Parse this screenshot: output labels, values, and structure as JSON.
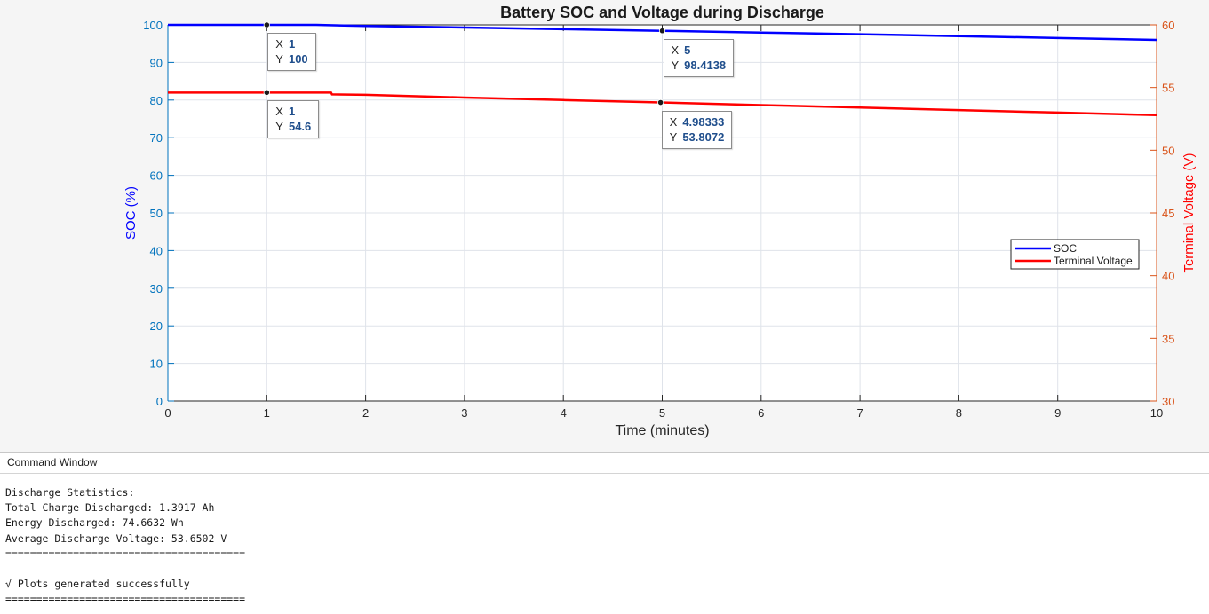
{
  "figure": {
    "title": "Battery SOC and Voltage during Discharge"
  },
  "chart_data": {
    "type": "line",
    "title": "Battery SOC and Voltage during Discharge",
    "xlabel": "Time (minutes)",
    "ylabel_left": "SOC (%)",
    "ylabel_right": "Terminal Voltage (V)",
    "xlim": [
      0,
      10
    ],
    "ylim_left": [
      0,
      100
    ],
    "ylim_right": [
      30,
      60
    ],
    "xticks": [
      0,
      1,
      2,
      3,
      4,
      5,
      6,
      7,
      8,
      9,
      10
    ],
    "yticks_left": [
      0,
      10,
      20,
      30,
      40,
      50,
      60,
      70,
      80,
      90,
      100
    ],
    "yticks_right": [
      30,
      35,
      40,
      45,
      50,
      55,
      60
    ],
    "grid": true,
    "legend_position": "east",
    "series": [
      {
        "name": "SOC",
        "axis": "left",
        "color": "#0000ff",
        "x": [
          0,
          1,
          1.5,
          2,
          3,
          4,
          5,
          6,
          7,
          8,
          9,
          10
        ],
        "y": [
          100,
          100,
          100,
          99.7,
          99.3,
          98.85,
          98.4138,
          97.95,
          97.5,
          97.0,
          96.5,
          96.0
        ]
      },
      {
        "name": "Terminal Voltage",
        "axis": "right",
        "color": "#ff0000",
        "x": [
          0,
          1,
          1.65,
          1.66,
          2,
          3,
          4,
          4.98333,
          6,
          7,
          8,
          9,
          10
        ],
        "y": [
          54.6,
          54.6,
          54.6,
          54.45,
          54.42,
          54.2,
          54.0,
          53.8072,
          53.6,
          53.4,
          53.2,
          53.0,
          52.8
        ]
      }
    ],
    "datatips": [
      {
        "x_label": "X",
        "y_label": "Y",
        "x": "1",
        "y": "100",
        "series": "SOC",
        "xv": 1,
        "yv": 100
      },
      {
        "x_label": "X",
        "y_label": "Y",
        "x": "5",
        "y": "98.4138",
        "series": "SOC",
        "xv": 5,
        "yv": 98.4138
      },
      {
        "x_label": "X",
        "y_label": "Y",
        "x": "1",
        "y": "54.6",
        "series": "Terminal Voltage",
        "xv": 1,
        "yv": 54.6
      },
      {
        "x_label": "X",
        "y_label": "Y",
        "x": "4.98333",
        "y": "53.8072",
        "series": "Terminal Voltage",
        "xv": 4.98333,
        "yv": 53.8072
      }
    ],
    "colors": {
      "left_axis": "#0072bd",
      "right_axis": "#d95319",
      "ylabel_left": "#0000ff",
      "ylabel_right": "#ff0000"
    }
  },
  "command_window": {
    "title": "Command Window",
    "lines": [
      "Discharge Statistics:",
      "Total Charge Discharged: 1.3917 Ah",
      "Energy Discharged: 74.6632 Wh",
      "Average Discharge Voltage: 53.6502 V",
      "=======================================",
      "",
      "√ Plots generated successfully",
      "======================================="
    ]
  }
}
